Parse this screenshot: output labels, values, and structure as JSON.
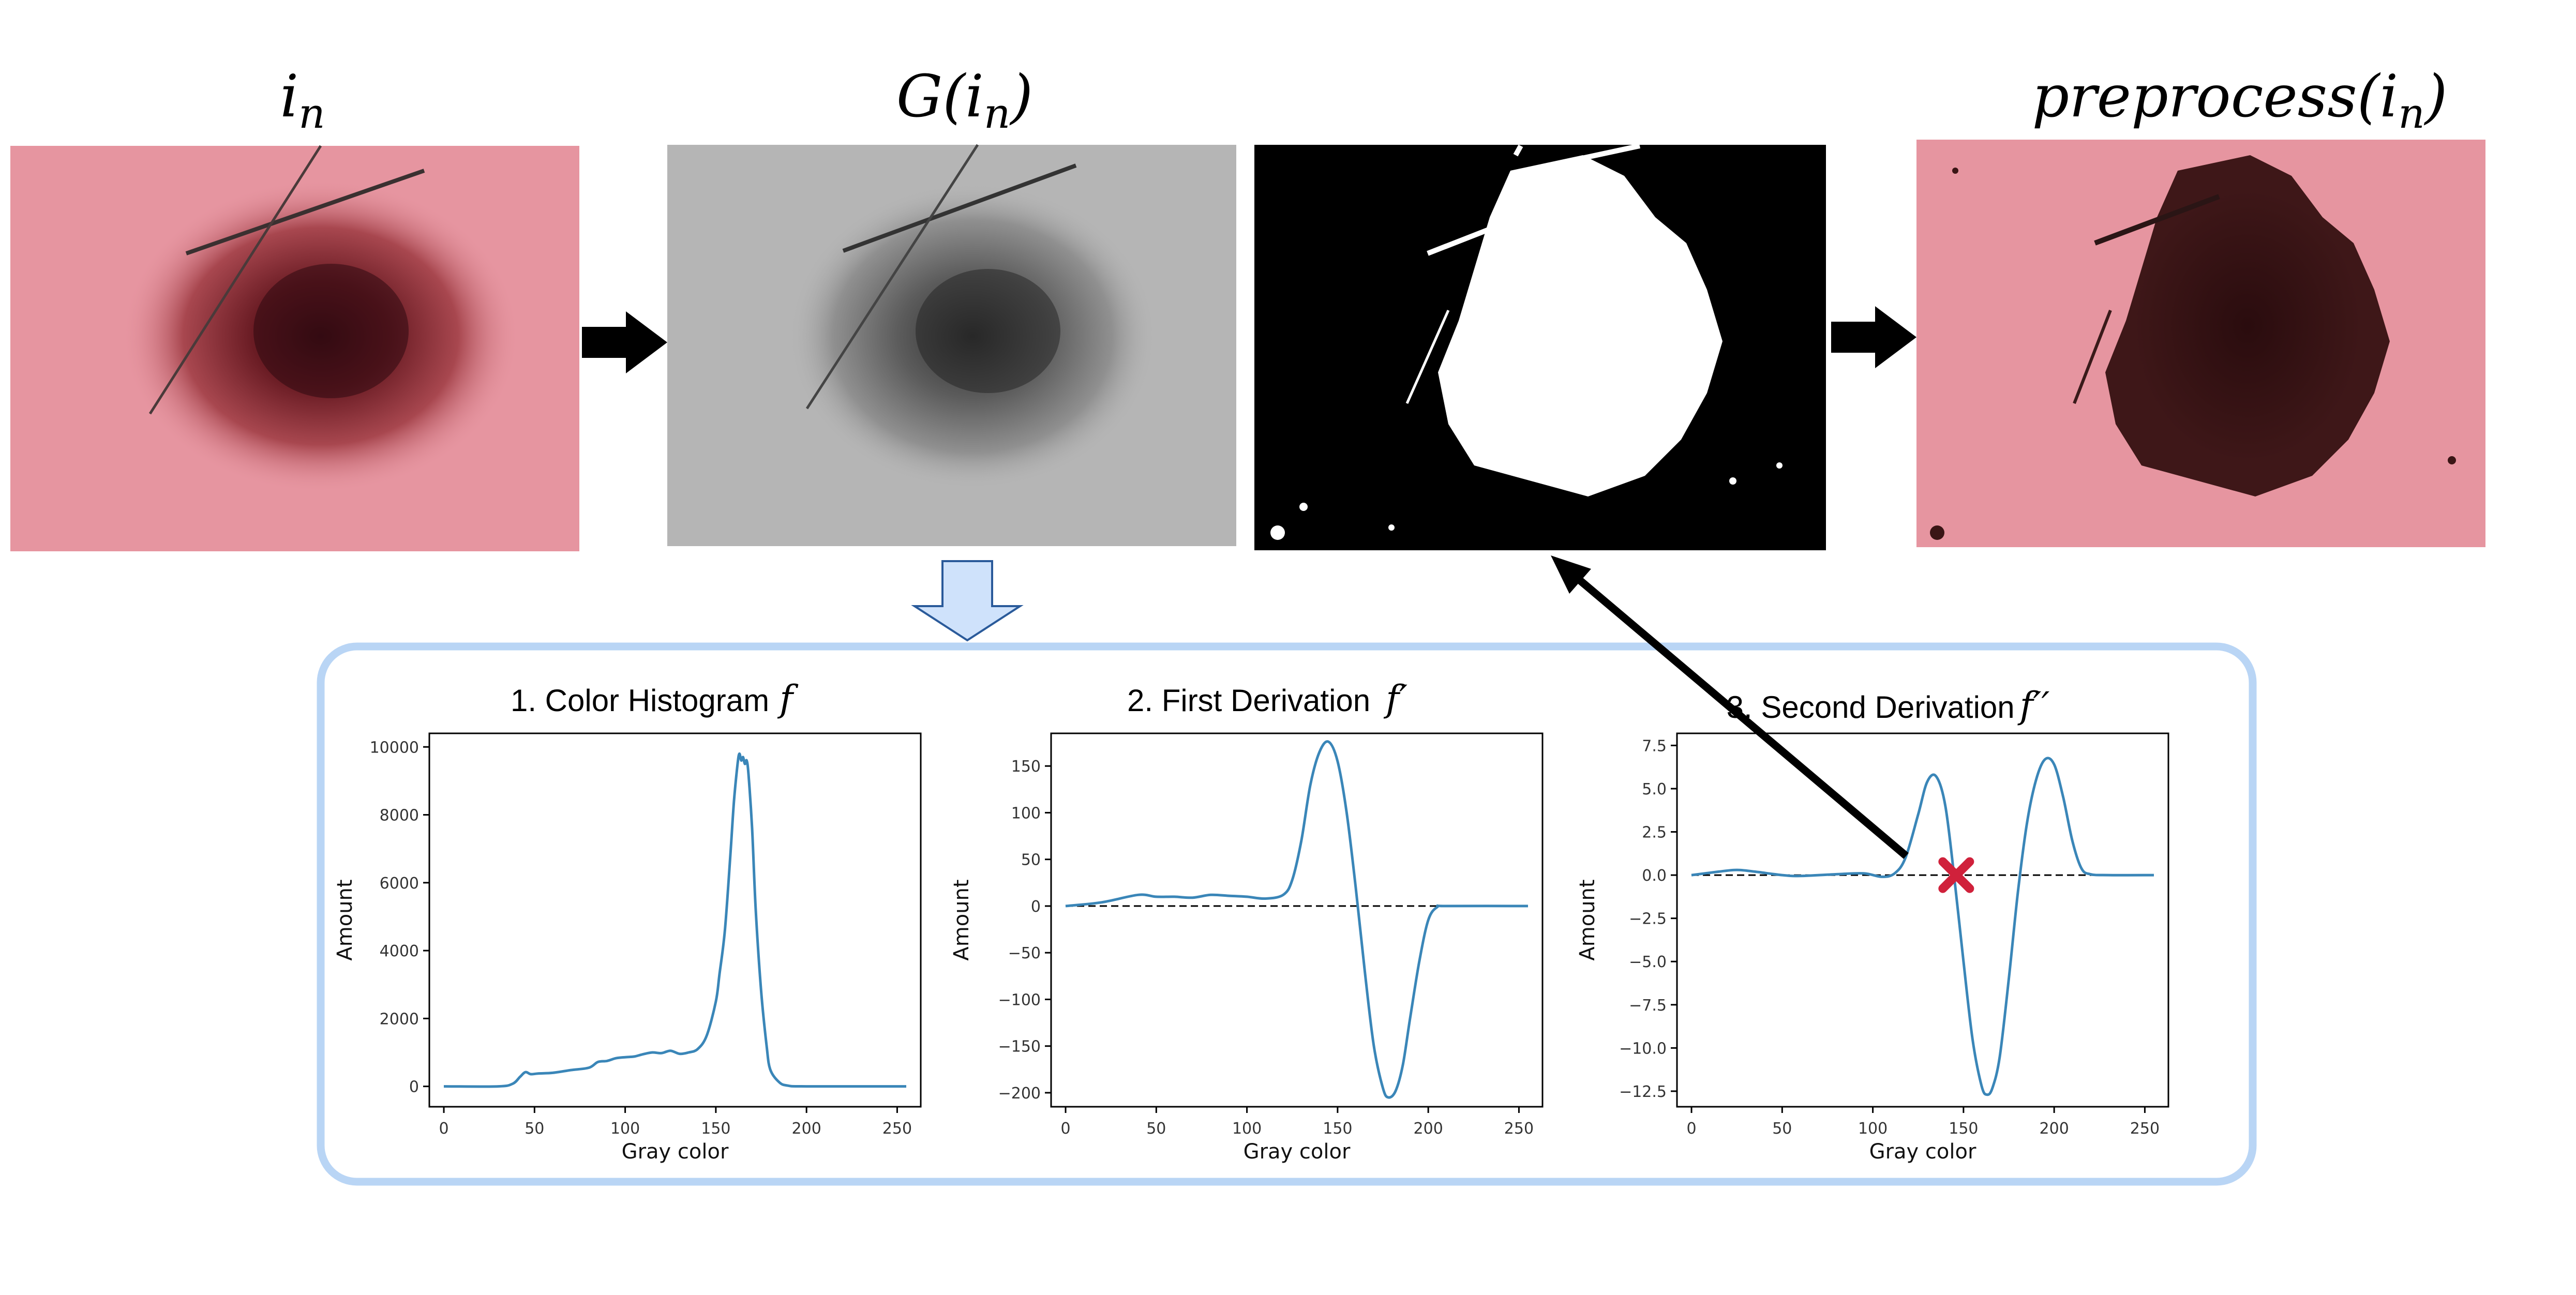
{
  "images": {
    "input": {
      "label": "i",
      "label_sub": "n"
    },
    "gray": {
      "label_fn": "G(",
      "label_var": "i",
      "label_sub": "n",
      "label_close": ")"
    },
    "mask": {},
    "output": {
      "label_fn": "preprocess(",
      "label_var": "i",
      "label_sub": "n",
      "label_close": ")"
    }
  },
  "colors": {
    "line": "#3a86b8",
    "frame": "#b9d5f5",
    "down_arrow_fill": "#cfe2fb",
    "down_arrow_stroke": "#2a5a9a",
    "marker": "#d0213b",
    "skin": "#e08d98",
    "lesion": "#5a1a20"
  },
  "chart_data": [
    {
      "type": "line",
      "title": "1. Color Histogram",
      "title_symbol": "f",
      "xlabel": "Gray color",
      "ylabel": "Amount",
      "xlim": [
        -8,
        263
      ],
      "ylim": [
        -600,
        10400
      ],
      "xticks": [
        0,
        50,
        100,
        150,
        200,
        250
      ],
      "yticks": [
        0,
        2000,
        4000,
        6000,
        8000,
        10000
      ],
      "x": [
        0,
        30,
        38,
        42,
        45,
        48,
        52,
        60,
        70,
        80,
        85,
        90,
        95,
        100,
        105,
        110,
        115,
        120,
        125,
        130,
        135,
        140,
        145,
        150,
        152,
        155,
        158,
        160,
        162,
        163,
        164,
        165,
        166,
        167,
        168,
        170,
        172,
        175,
        178,
        180,
        185,
        190,
        200,
        255
      ],
      "y": [
        0,
        0,
        80,
        280,
        420,
        360,
        380,
        400,
        480,
        550,
        720,
        750,
        830,
        860,
        880,
        950,
        1000,
        980,
        1050,
        960,
        1000,
        1100,
        1500,
        2500,
        3300,
        4600,
        6800,
        8400,
        9500,
        9800,
        9600,
        9700,
        9500,
        9600,
        9200,
        7600,
        5200,
        2800,
        1200,
        500,
        120,
        20,
        0,
        0
      ]
    },
    {
      "type": "line",
      "title": "2. First Derivation",
      "title_symbol": "f′",
      "xlabel": "Gray color",
      "ylabel": "Amount",
      "xlim": [
        -8,
        263
      ],
      "ylim": [
        -215,
        185
      ],
      "xticks": [
        0,
        50,
        100,
        150,
        200,
        250
      ],
      "yticks": [
        150,
        100,
        50,
        0,
        -50,
        -100,
        -150,
        -200
      ],
      "baseline": 0,
      "x": [
        0,
        20,
        40,
        50,
        60,
        70,
        80,
        90,
        100,
        110,
        120,
        125,
        130,
        135,
        140,
        145,
        150,
        155,
        160,
        165,
        170,
        175,
        178,
        182,
        186,
        190,
        195,
        200,
        205,
        210,
        255
      ],
      "y": [
        0,
        4,
        12,
        10,
        10,
        9,
        12,
        11,
        10,
        8,
        12,
        28,
        70,
        130,
        165,
        176,
        155,
        100,
        20,
        -70,
        -150,
        -195,
        -205,
        -198,
        -170,
        -120,
        -60,
        -15,
        -1,
        0,
        0
      ]
    },
    {
      "type": "line",
      "title": "3. Second Derivation",
      "title_symbol": "f′′",
      "xlabel": "Gray color",
      "ylabel": "Amount",
      "xlim": [
        -8,
        263
      ],
      "ylim": [
        -13.4,
        8.2
      ],
      "xticks": [
        0,
        50,
        100,
        150,
        200,
        250
      ],
      "yticks": [
        7.5,
        5.0,
        2.5,
        0.0,
        -2.5,
        -5.0,
        -7.5,
        -10.0,
        -12.5
      ],
      "baseline": 0,
      "marker_x": 146,
      "x": [
        0,
        15,
        25,
        35,
        50,
        60,
        80,
        95,
        105,
        112,
        118,
        125,
        130,
        135,
        140,
        145,
        150,
        155,
        160,
        163,
        166,
        170,
        175,
        180,
        185,
        190,
        195,
        200,
        205,
        210,
        215,
        220,
        230,
        255
      ],
      "y": [
        0,
        0.2,
        0.3,
        0.2,
        0,
        -0.05,
        0.05,
        0.1,
        -0.1,
        0.1,
        1.0,
        3.5,
        5.4,
        5.7,
        4.0,
        -0.2,
        -5.0,
        -9.5,
        -12.2,
        -12.7,
        -12.3,
        -10.5,
        -6.0,
        -1.0,
        3.0,
        5.5,
        6.7,
        6.4,
        4.5,
        2.0,
        0.4,
        0.05,
        0,
        0
      ]
    }
  ]
}
